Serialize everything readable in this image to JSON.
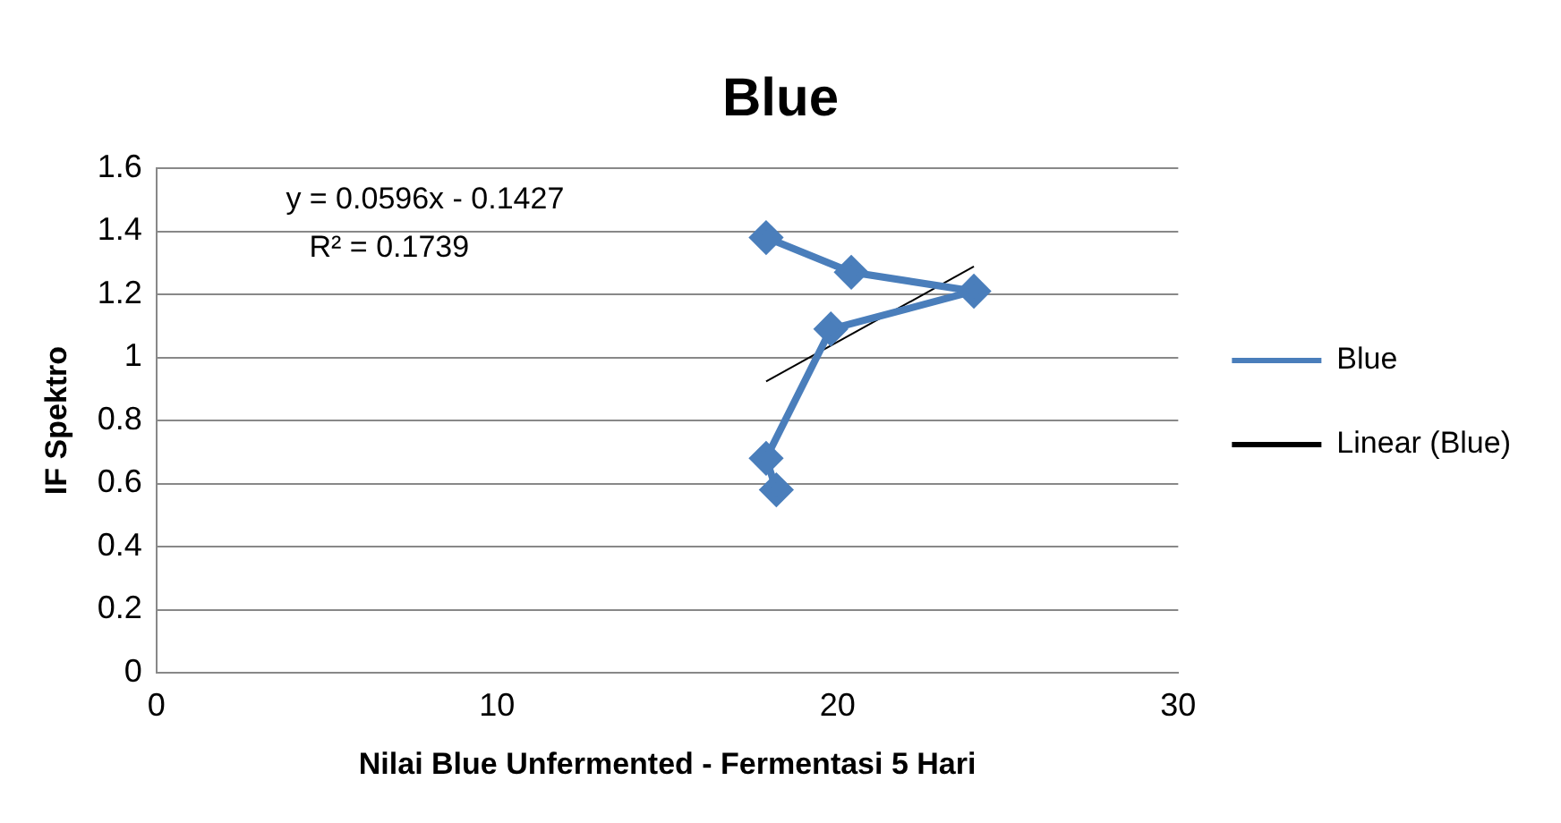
{
  "chart_data": {
    "type": "line",
    "title": "Blue",
    "xlabel": "Nilai Blue Unfermented - Fermentasi 5 Hari",
    "ylabel": "IF Spektro",
    "annotations": [
      "y = 0.0596x - 0.1427",
      "R² = 0.1739"
    ],
    "series": [
      {
        "name": "Blue",
        "color": "#4a7ebb",
        "x": [
          17.9,
          20.4,
          24.0,
          19.8,
          17.9,
          18.2
        ],
        "values": [
          1.38,
          1.27,
          1.21,
          1.09,
          0.68,
          0.58
        ],
        "marker": "diamond"
      },
      {
        "name": "Linear (Blue)",
        "type": "line",
        "color": "#000000",
        "x": [
          17.9,
          24.0
        ],
        "values": [
          0.924,
          1.288
        ],
        "marker": "none"
      }
    ],
    "xlim": [
      0,
      30
    ],
    "xticks": [
      0,
      10,
      20,
      30
    ],
    "ylim": [
      0,
      1.6
    ],
    "yticks": [
      0,
      0.2,
      0.4,
      0.6,
      0.8,
      1,
      1.2,
      1.4,
      1.6
    ],
    "grid": "y",
    "legend": "right"
  }
}
